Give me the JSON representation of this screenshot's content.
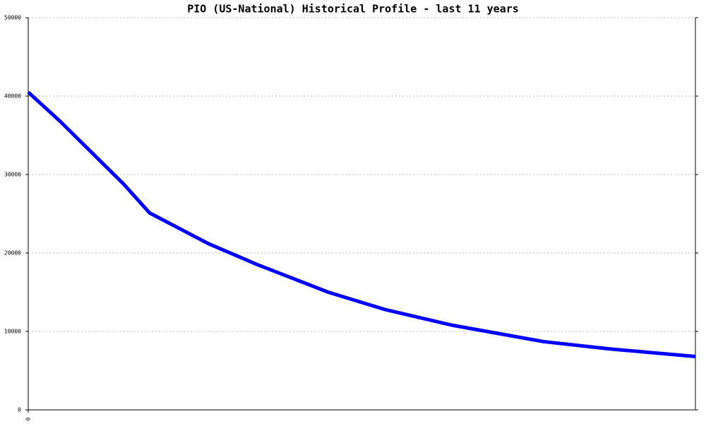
{
  "chart_data": {
    "type": "line",
    "title": "PIO (US-National) Historical Profile - last 11 years",
    "x": [
      0,
      45,
      90,
      135,
      172,
      255,
      325,
      425,
      505,
      600,
      730,
      820,
      945
    ],
    "series": [
      {
        "color": "#0000ff",
        "values": [
          40500,
          36800,
          32800,
          28800,
          25100,
          21200,
          18500,
          15000,
          12800,
          10800,
          8700,
          7800,
          6800
        ]
      }
    ],
    "xlim": [
      0,
      945
    ],
    "xticks": [
      0
    ],
    "ylim": [
      0,
      50000
    ],
    "yticks": [
      0,
      10000,
      20000,
      30000,
      40000,
      50000
    ],
    "grid": true
  }
}
